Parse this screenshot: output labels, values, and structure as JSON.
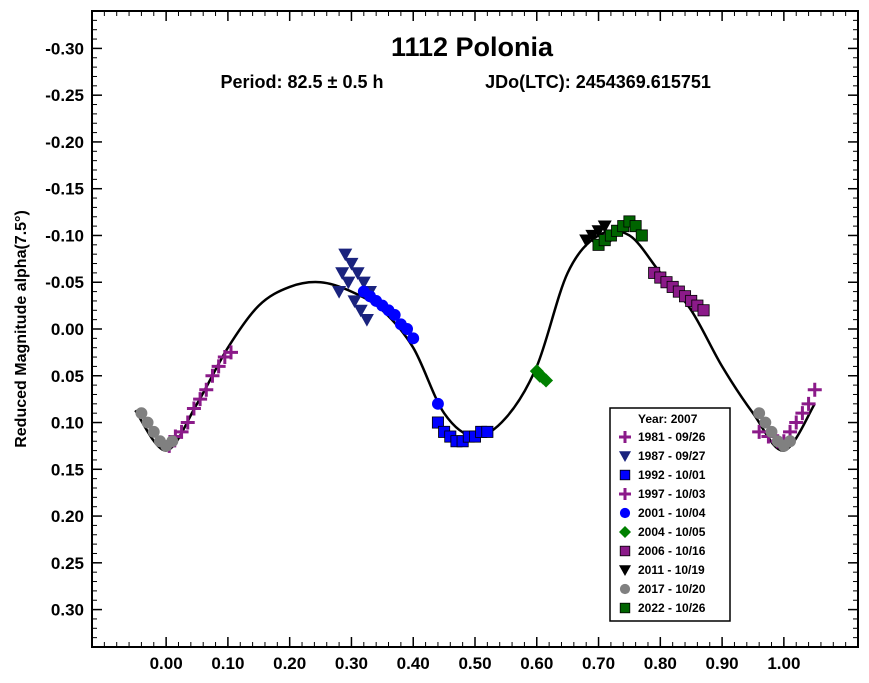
{
  "chart_data": {
    "type": "scatter",
    "title": "1112 Polonia",
    "subtitle_period": "Period: 82.5 ± 0.5 h",
    "subtitle_epoch": "JDo(LTC): 2454369.615751",
    "ylabel": "Reduced Magnitude alpha(7.5°)",
    "xlabel": "",
    "xlim": [
      -0.12,
      1.12
    ],
    "ylim": [
      -0.34,
      0.34
    ],
    "y_inverted": true,
    "x_ticks": [
      "0.00",
      "0.10",
      "0.20",
      "0.30",
      "0.40",
      "0.50",
      "0.60",
      "0.70",
      "0.80",
      "0.90",
      "1.00"
    ],
    "y_ticks": [
      "-0.30",
      "-0.25",
      "-0.20",
      "-0.15",
      "-0.10",
      "-0.05",
      "0.00",
      "0.05",
      "0.10",
      "0.15",
      "0.20",
      "0.25",
      "0.30"
    ],
    "legend_title": "Year: 2007",
    "legend_placement": "bottom-right",
    "series": [
      {
        "name": "1981 - 09/26",
        "marker": "plus",
        "color": "#8B1A89",
        "x": [
          0.005,
          0.015,
          0.025,
          0.035,
          0.045,
          0.055,
          0.065,
          0.075,
          0.085,
          0.095,
          0.105
        ],
        "y": [
          0.125,
          0.115,
          0.11,
          0.1,
          0.085,
          0.075,
          0.065,
          0.05,
          0.04,
          0.03,
          0.025
        ]
      },
      {
        "name": "1987 - 09/27",
        "marker": "triangle-down",
        "color": "#1A237E",
        "x": [
          0.28,
          0.285,
          0.29,
          0.295,
          0.3,
          0.305,
          0.31,
          0.315,
          0.32,
          0.325,
          0.33
        ],
        "y": [
          -0.04,
          -0.06,
          -0.08,
          -0.05,
          -0.07,
          -0.03,
          -0.06,
          -0.02,
          -0.05,
          -0.01,
          -0.04
        ]
      },
      {
        "name": "1992 - 10/01",
        "marker": "square",
        "color": "#0000FF",
        "x": [
          0.44,
          0.45,
          0.46,
          0.47,
          0.48,
          0.49,
          0.5,
          0.51,
          0.52
        ],
        "y": [
          0.1,
          0.11,
          0.115,
          0.12,
          0.12,
          0.115,
          0.115,
          0.11,
          0.11
        ]
      },
      {
        "name": "1997 - 10/03",
        "marker": "plus",
        "color": "#8B1A89",
        "x": [
          0.96,
          0.975,
          0.99,
          1.0,
          1.01,
          1.02,
          1.03,
          1.04,
          1.05
        ],
        "y": [
          0.11,
          0.115,
          0.12,
          0.12,
          0.11,
          0.1,
          0.09,
          0.08,
          0.065
        ]
      },
      {
        "name": "2001 - 10/04",
        "marker": "circle",
        "color": "#0000FF",
        "x": [
          0.32,
          0.33,
          0.34,
          0.35,
          0.36,
          0.37,
          0.38,
          0.39,
          0.4,
          0.44
        ],
        "y": [
          -0.04,
          -0.035,
          -0.03,
          -0.025,
          -0.02,
          -0.015,
          -0.005,
          0.0,
          0.01,
          0.08
        ]
      },
      {
        "name": "2004 - 10/05",
        "marker": "diamond",
        "color": "#008000",
        "x": [
          0.6,
          0.605,
          0.61,
          0.615
        ],
        "y": [
          0.045,
          0.05,
          0.052,
          0.055
        ]
      },
      {
        "name": "2006 - 10/16",
        "marker": "square",
        "color": "#8B1A89",
        "x": [
          0.79,
          0.8,
          0.81,
          0.82,
          0.83,
          0.84,
          0.85,
          0.86,
          0.87
        ],
        "y": [
          -0.06,
          -0.055,
          -0.05,
          -0.045,
          -0.04,
          -0.035,
          -0.03,
          -0.025,
          -0.02
        ]
      },
      {
        "name": "2011 - 10/19",
        "marker": "triangle-down",
        "color": "#000000",
        "x": [
          0.68,
          0.69,
          0.7,
          0.71,
          0.72
        ],
        "y": [
          -0.095,
          -0.1,
          -0.105,
          -0.11,
          -0.1
        ]
      },
      {
        "name": "2017 - 10/20",
        "marker": "circle",
        "color": "#808080",
        "x": [
          -0.04,
          -0.03,
          -0.02,
          -0.01,
          0.0,
          0.01,
          0.96,
          0.97,
          0.98,
          0.99,
          1.0,
          1.01
        ],
        "y": [
          0.09,
          0.1,
          0.11,
          0.12,
          0.125,
          0.12,
          0.09,
          0.1,
          0.11,
          0.12,
          0.125,
          0.12
        ]
      },
      {
        "name": "2022 - 10/26",
        "marker": "square",
        "color": "#006400",
        "x": [
          0.7,
          0.71,
          0.72,
          0.73,
          0.74,
          0.75,
          0.76,
          0.77
        ],
        "y": [
          -0.09,
          -0.095,
          -0.1,
          -0.105,
          -0.11,
          -0.115,
          -0.11,
          -0.1
        ]
      }
    ],
    "fit_curve": {
      "x": [
        -0.05,
        0.0,
        0.05,
        0.1,
        0.15,
        0.2,
        0.25,
        0.3,
        0.35,
        0.4,
        0.45,
        0.5,
        0.55,
        0.6,
        0.65,
        0.7,
        0.75,
        0.8,
        0.85,
        0.9,
        0.95,
        1.0,
        1.05
      ],
      "y": [
        0.087,
        0.13,
        0.08,
        0.02,
        -0.025,
        -0.045,
        -0.05,
        -0.04,
        -0.02,
        0.02,
        0.09,
        0.115,
        0.095,
        0.04,
        -0.06,
        -0.1,
        -0.1,
        -0.06,
        -0.02,
        0.04,
        0.09,
        0.13,
        0.08
      ]
    }
  }
}
